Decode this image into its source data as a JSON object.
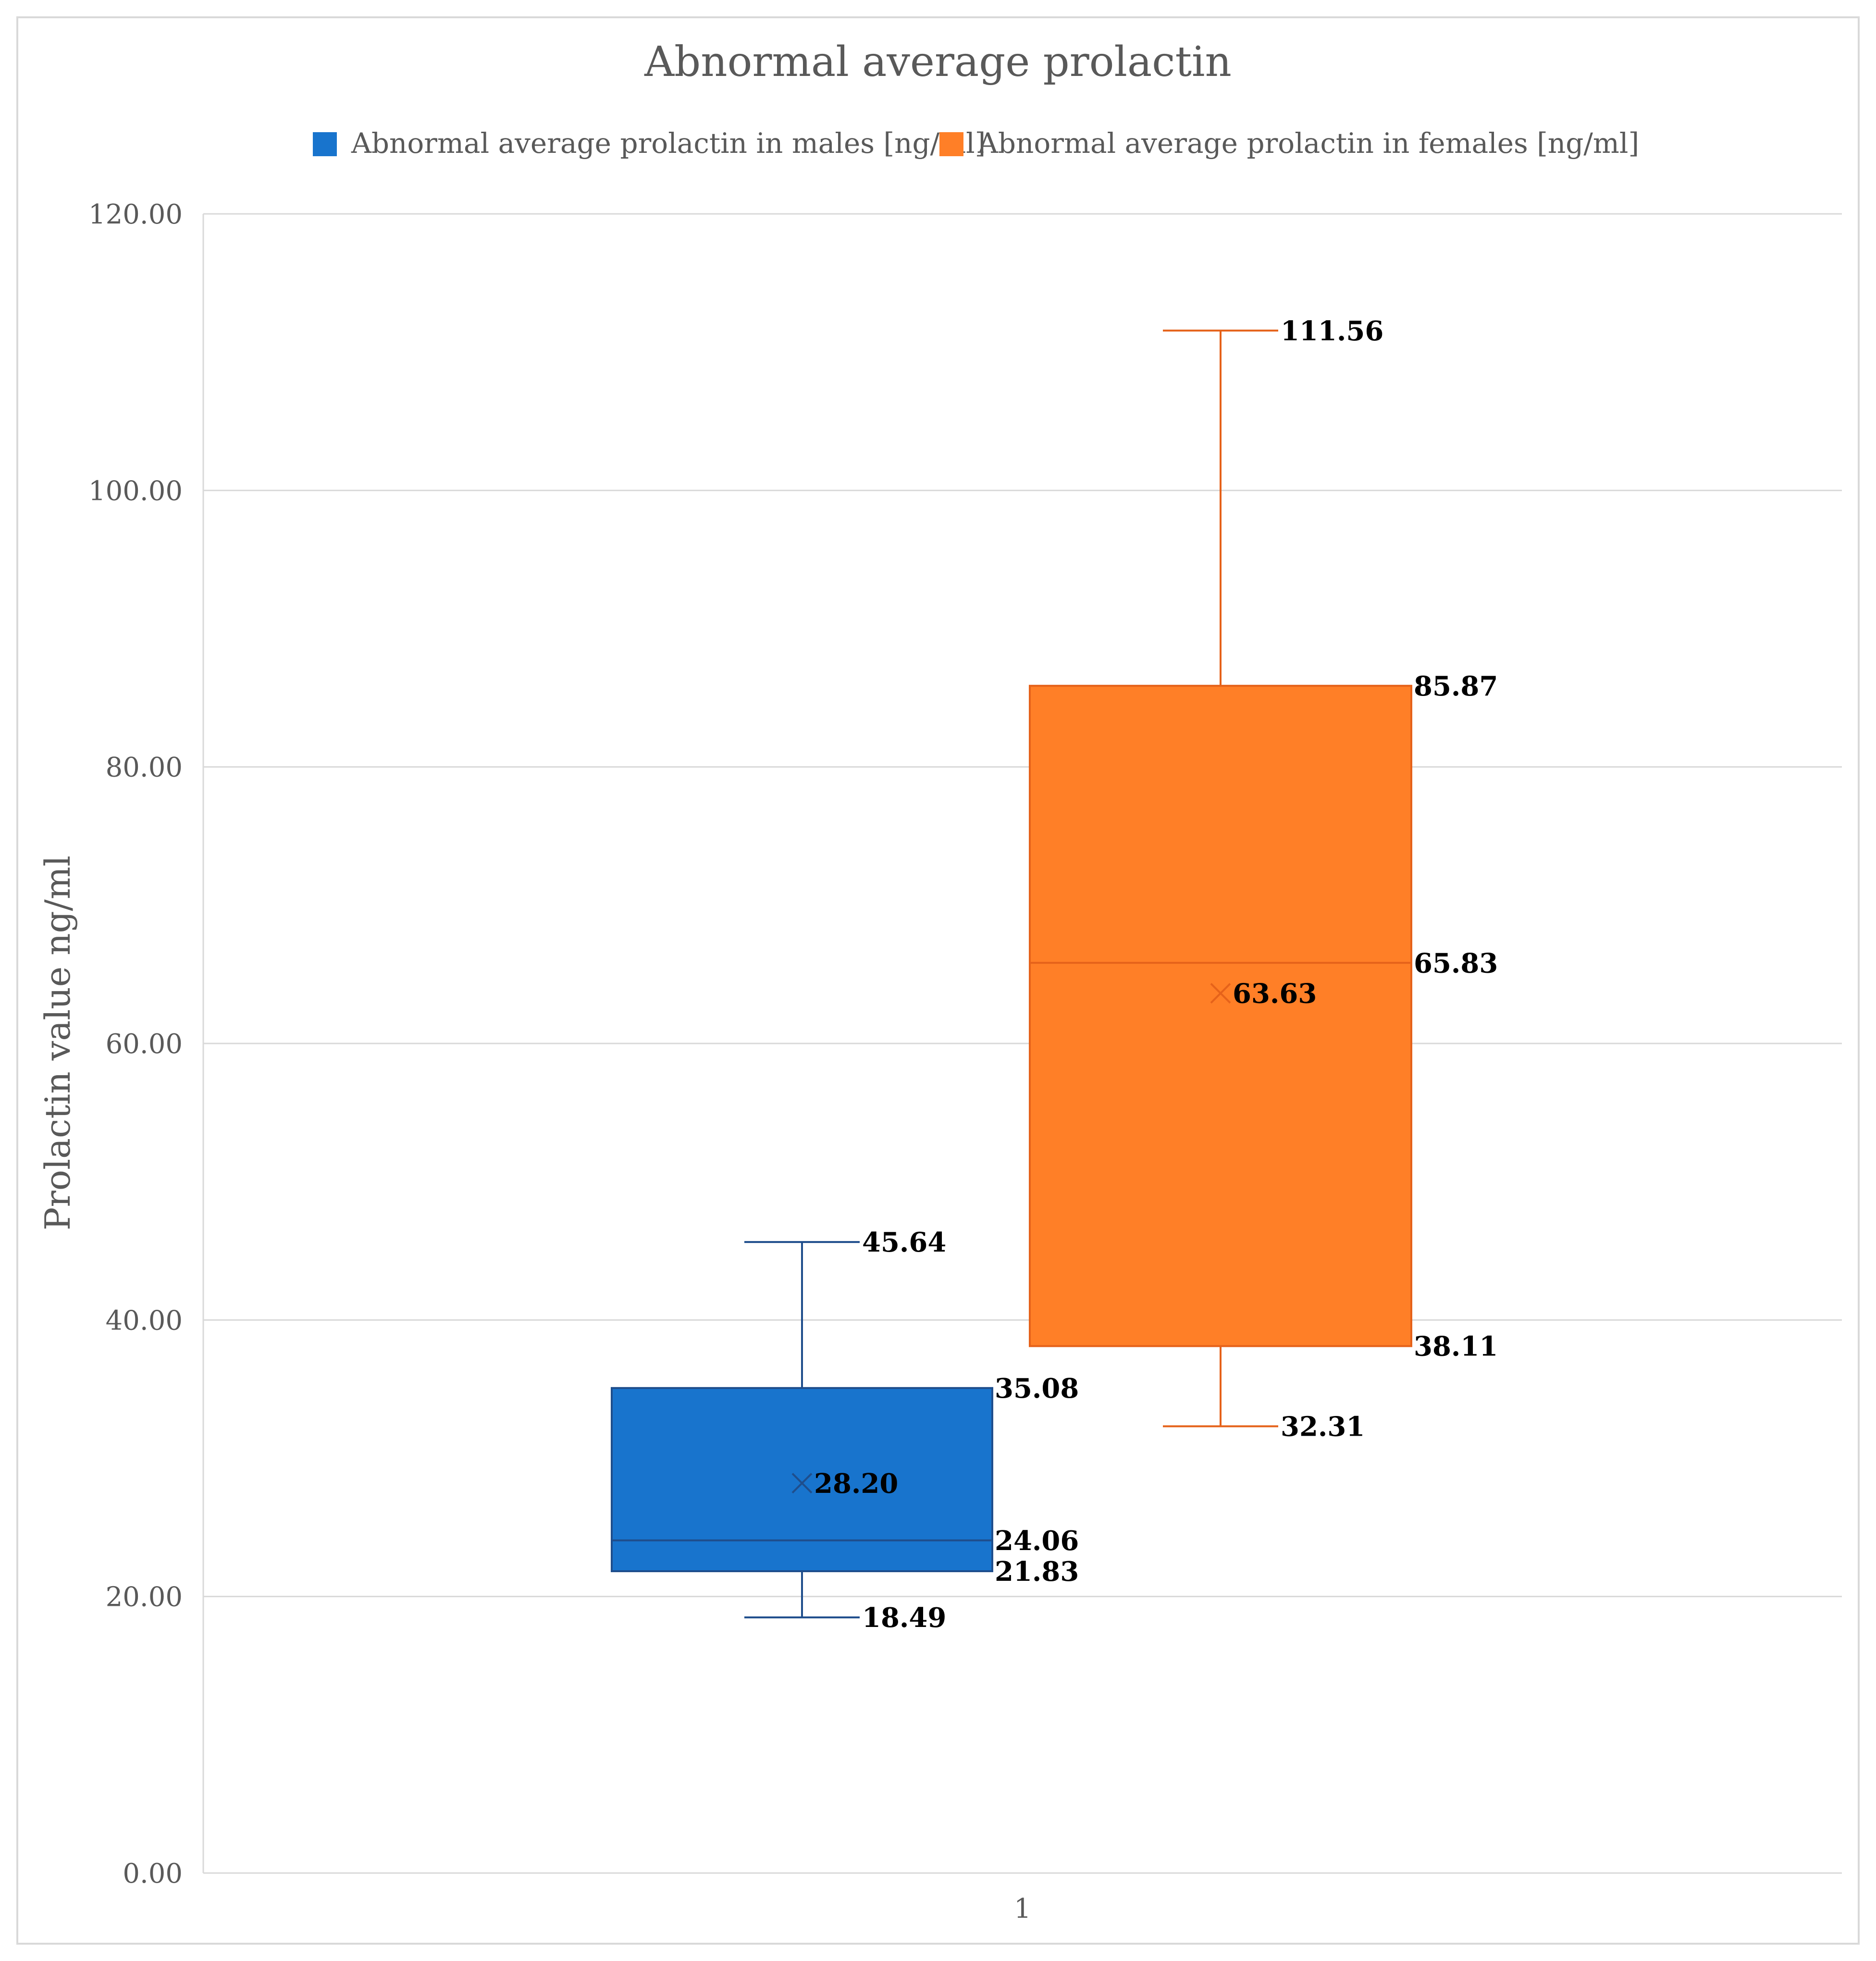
{
  "chart_data": {
    "type": "box",
    "title": "Abnormal average prolactin",
    "xlabel": "",
    "ylabel": "Prolactin value ng/ml",
    "ylim": [
      0,
      120
    ],
    "y_ticks": [
      "0.00",
      "20.00",
      "40.00",
      "60.00",
      "80.00",
      "100.00",
      "120.00"
    ],
    "y_tick_values": [
      0,
      20,
      40,
      60,
      80,
      100,
      120
    ],
    "categories": [
      "1"
    ],
    "grid": true,
    "legend_position": "top",
    "series": [
      {
        "name": "Abnormal average prolactin in males [ng/ml]",
        "color": "#1874CD",
        "edge_color": "#1F4E8C",
        "min": 18.49,
        "q1": 21.83,
        "median": 24.06,
        "q3": 35.08,
        "max": 45.64,
        "mean": 28.2,
        "labels": {
          "min": "18.49",
          "q1": "21.83",
          "median": "24.06",
          "q3": "35.08",
          "max": "45.64",
          "mean": "28.20"
        }
      },
      {
        "name": "Abnormal average prolactin in females  [ng/ml]",
        "color": "#FF7F27",
        "edge_color": "#E5621A",
        "min": 32.31,
        "q1": 38.11,
        "median": 65.83,
        "q3": 85.87,
        "max": 111.56,
        "mean": 63.63,
        "labels": {
          "min": "32.31",
          "q1": "38.11",
          "median": "65.83",
          "q3": "85.87",
          "max": "111.56",
          "mean": "63.63"
        }
      }
    ]
  }
}
